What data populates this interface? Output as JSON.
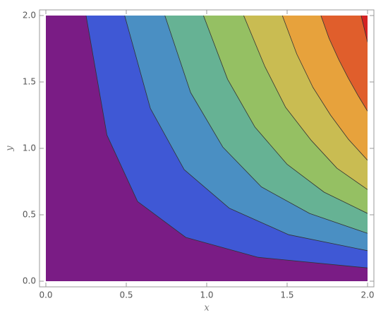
{
  "chart_data": {
    "type": "contour",
    "xlabel": "x",
    "ylabel": "y",
    "base_color": "#7a1c85",
    "xlim": [
      0,
      2
    ],
    "ylim": [
      0,
      2
    ],
    "xticks": [
      {
        "value": 0,
        "label": "0.0"
      },
      {
        "value": 0.5,
        "label": "0.5"
      },
      {
        "value": 1,
        "label": "1.0"
      },
      {
        "value": 1.5,
        "label": "1.5"
      },
      {
        "value": 2,
        "label": "2.0"
      }
    ],
    "yticks": [
      {
        "value": 0,
        "label": "0.0"
      },
      {
        "value": 0.5,
        "label": "0.5"
      },
      {
        "value": 1,
        "label": "1.0"
      },
      {
        "value": 1.5,
        "label": "1.5"
      },
      {
        "value": 2,
        "label": "2.0"
      }
    ],
    "contours": [
      {
        "color": "#3f58d5",
        "x": [
          0.25,
          0.38,
          0.57,
          0.87,
          1.32,
          2
        ],
        "y": [
          2,
          1.1,
          0.6,
          0.33,
          0.18,
          0.1
        ]
      },
      {
        "color": "#4a8fc3",
        "x": [
          0.49,
          0.65,
          0.86,
          1.14,
          1.51,
          2
        ],
        "y": [
          2,
          1.3,
          0.84,
          0.55,
          0.35,
          0.23
        ]
      },
      {
        "color": "#66b294",
        "x": [
          0.74,
          0.9,
          1.1,
          1.34,
          1.64,
          2
        ],
        "y": [
          2,
          1.42,
          1.01,
          0.71,
          0.51,
          0.36
        ]
      },
      {
        "color": "#95c063",
        "x": [
          0.98,
          1.13,
          1.3,
          1.5,
          1.73,
          2
        ],
        "y": [
          2,
          1.52,
          1.16,
          0.88,
          0.67,
          0.51
        ]
      },
      {
        "color": "#c9bc52",
        "x": [
          1.23,
          1.36,
          1.49,
          1.65,
          1.81,
          2
        ],
        "y": [
          2,
          1.62,
          1.31,
          1.06,
          0.85,
          0.69
        ]
      },
      {
        "color": "#e7a23c",
        "x": [
          1.47,
          1.56,
          1.66,
          1.77,
          1.88,
          2
        ],
        "y": [
          2,
          1.71,
          1.46,
          1.25,
          1.07,
          0.91
        ]
      },
      {
        "color": "#e05e2c",
        "x": [
          1.71,
          1.76,
          1.82,
          1.88,
          1.94,
          2
        ],
        "y": [
          2,
          1.83,
          1.67,
          1.53,
          1.4,
          1.28
        ]
      },
      {
        "color": "#d42222",
        "x": [
          1.96,
          1.98,
          2
        ],
        "y": [
          2,
          1.9,
          1.8
        ]
      }
    ]
  }
}
